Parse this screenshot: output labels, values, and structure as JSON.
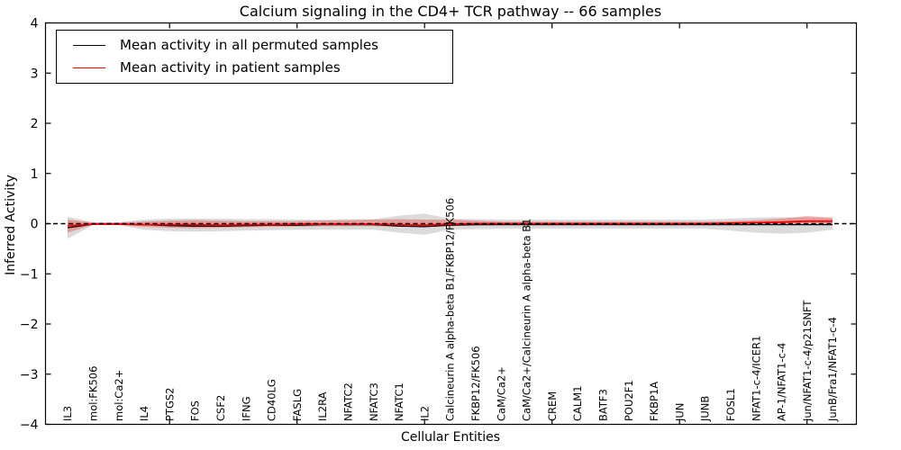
{
  "title": "Calcium signaling in the CD4+ TCR pathway -- 66 samples",
  "legend": {
    "items": [
      {
        "label": "Mean activity in all permuted samples",
        "color": "#000000"
      },
      {
        "label": "Mean activity in patient samples",
        "color": "#ff0000"
      }
    ]
  },
  "axes": {
    "xlabel": "Cellular Entities",
    "ylabel": "Inferred Activity",
    "ylim": [
      -4,
      4
    ],
    "yticks": [
      -4,
      -3,
      -2,
      -1,
      0,
      1,
      2,
      3,
      4
    ],
    "xtick_positions": [
      5,
      10,
      15,
      20,
      25,
      30
    ],
    "grid": false,
    "legend_position": "upper-left"
  },
  "chart_data": {
    "type": "line",
    "title": "Calcium signaling in the CD4+ TCR pathway -- 66 samples",
    "xlabel": "Cellular Entities",
    "ylabel": "Inferred Activity",
    "ylim": [
      -4,
      4
    ],
    "categories": [
      "IL3",
      "mol:FK506",
      "mol:Ca2+",
      "IL4",
      "PTGS2",
      "FOS",
      "CSF2",
      "IFNG",
      "CD40LG",
      "FASLG",
      "IL2RA",
      "NFATC2",
      "NFATC3",
      "NFATC1",
      "IL2",
      "Calcineurin A alpha-beta B1/FKBP12/FK506",
      "FKBP12/FK506",
      "CaM/Ca2+",
      "CaM/Ca2+/Calcineurin A alpha-beta B1",
      "CREM",
      "CALM1",
      "BATF3",
      "POU2F1",
      "FKBP1A",
      "JUN",
      "JUNB",
      "FOSL1",
      "NFAT1-c-4/ICER1",
      "AP-1/NFAT1-c-4",
      "Jun/NFAT1-c-4/p21SNFT",
      "JunB/Fra1/NFAT1-c-4"
    ],
    "series": [
      {
        "name": "Mean activity in all permuted samples",
        "color": "#000000",
        "values": [
          -0.08,
          -0.01,
          -0.01,
          -0.02,
          -0.04,
          -0.05,
          -0.05,
          -0.04,
          -0.03,
          -0.03,
          -0.02,
          -0.02,
          -0.02,
          -0.05,
          -0.06,
          -0.03,
          -0.02,
          -0.02,
          -0.02,
          -0.02,
          -0.02,
          -0.02,
          -0.02,
          -0.02,
          -0.02,
          -0.02,
          -0.02,
          -0.02,
          -0.02,
          -0.02,
          -0.02
        ]
      },
      {
        "name": "Mean activity in patient samples",
        "color": "#ff0000",
        "values": [
          -0.04,
          -0.01,
          -0.01,
          -0.02,
          -0.02,
          -0.02,
          -0.03,
          -0.02,
          -0.02,
          -0.01,
          -0.01,
          -0.01,
          -0.01,
          -0.02,
          -0.03,
          -0.01,
          0.0,
          0.0,
          0.0,
          0.0,
          0.0,
          0.0,
          0.0,
          0.0,
          0.0,
          0.0,
          0.01,
          0.02,
          0.03,
          0.05,
          0.05
        ]
      }
    ],
    "bands": [
      {
        "name": "permuted-samples-range",
        "color": "#b0b0b0",
        "opacity": 0.45,
        "upper": [
          0.14,
          0.03,
          0.03,
          0.08,
          0.1,
          0.1,
          0.1,
          0.09,
          0.09,
          0.08,
          0.08,
          0.09,
          0.09,
          0.16,
          0.2,
          0.1,
          0.09,
          0.08,
          0.08,
          0.08,
          0.08,
          0.08,
          0.08,
          0.08,
          0.08,
          0.08,
          0.1,
          0.12,
          0.13,
          0.12,
          0.1
        ],
        "lower": [
          -0.3,
          -0.03,
          -0.03,
          -0.12,
          -0.15,
          -0.16,
          -0.15,
          -0.14,
          -0.13,
          -0.12,
          -0.12,
          -0.12,
          -0.12,
          -0.18,
          -0.22,
          -0.12,
          -0.11,
          -0.1,
          -0.1,
          -0.1,
          -0.1,
          -0.1,
          -0.1,
          -0.1,
          -0.1,
          -0.1,
          -0.14,
          -0.18,
          -0.2,
          -0.18,
          -0.12
        ]
      },
      {
        "name": "patient-samples-range",
        "color": "#e85050",
        "opacity": 0.45,
        "upper": [
          0.08,
          0.02,
          0.02,
          0.04,
          0.06,
          0.07,
          0.06,
          0.05,
          0.05,
          0.05,
          0.06,
          0.07,
          0.08,
          0.09,
          0.08,
          0.08,
          0.06,
          0.04,
          0.04,
          0.04,
          0.04,
          0.04,
          0.04,
          0.04,
          0.04,
          0.04,
          0.05,
          0.07,
          0.1,
          0.15,
          0.12
        ],
        "lower": [
          -0.18,
          -0.02,
          -0.02,
          -0.06,
          -0.08,
          -0.09,
          -0.08,
          -0.07,
          -0.06,
          -0.06,
          -0.05,
          -0.05,
          -0.05,
          -0.06,
          -0.06,
          -0.05,
          -0.04,
          -0.03,
          -0.03,
          -0.03,
          -0.03,
          -0.03,
          -0.03,
          -0.03,
          -0.03,
          -0.03,
          -0.03,
          -0.02,
          -0.01,
          0.0,
          0.0
        ]
      }
    ],
    "reference_line": {
      "y": 0,
      "style": "dashed",
      "color": "#000000"
    }
  }
}
